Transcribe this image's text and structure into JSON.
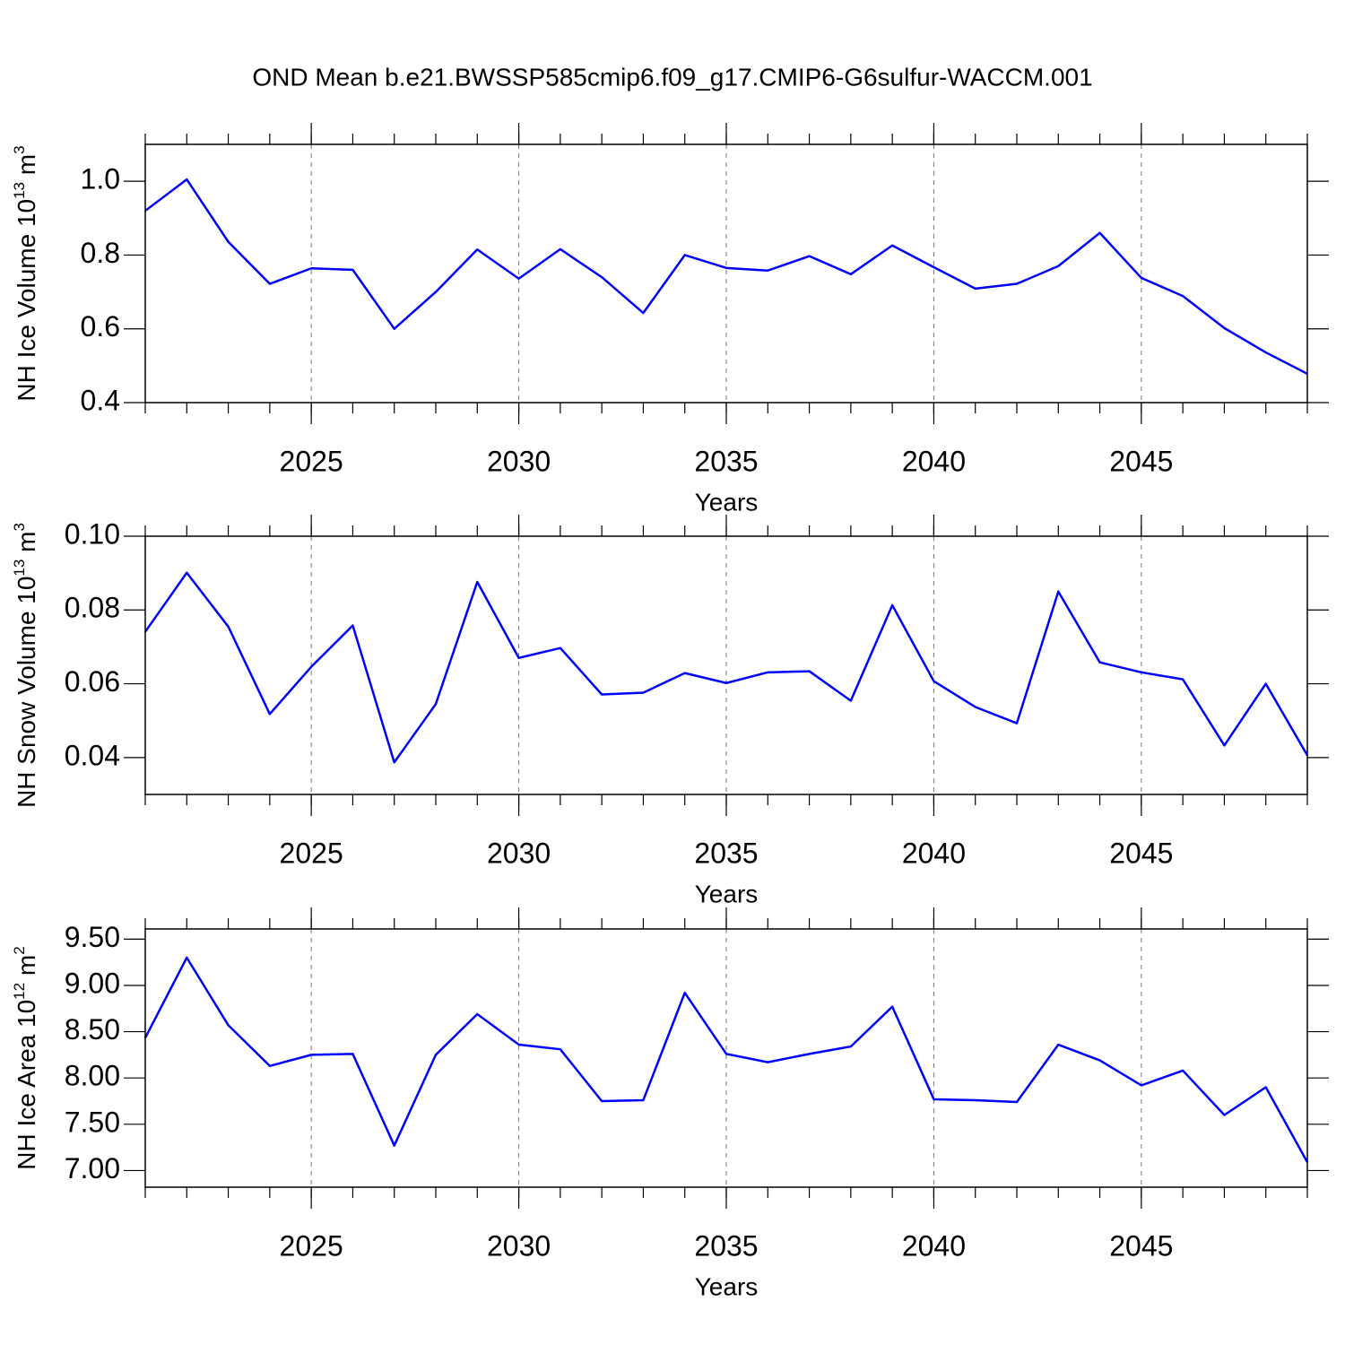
{
  "title": "OND Mean b.e21.BWSSP585cmip6.f09_g17.CMIP6-G6sulfur-WACCM.001",
  "chart_data": [
    {
      "type": "line",
      "ylabel_parts": [
        "NH Ice Volume 10",
        "13",
        " m",
        "3"
      ],
      "xlabel": "Years",
      "x": [
        2021,
        2022,
        2023,
        2024,
        2025,
        2026,
        2027,
        2028,
        2029,
        2030,
        2031,
        2032,
        2033,
        2034,
        2035,
        2036,
        2037,
        2038,
        2039,
        2040,
        2041,
        2042,
        2043,
        2044,
        2045,
        2046,
        2047,
        2048,
        2049
      ],
      "xlim": [
        2021,
        2049
      ],
      "xticks": [
        2025,
        2030,
        2035,
        2040,
        2045
      ],
      "grid_x": true,
      "ylim": [
        0.4,
        1.1
      ],
      "yticks": [
        {
          "value": 1,
          "label": "1.0"
        },
        0.8,
        0.6,
        0.4
      ],
      "series": [
        {
          "color": "#0000ff",
          "values": [
            0.92,
            1.005,
            0.836,
            0.722,
            0.764,
            0.76,
            0.6,
            0.7,
            0.815,
            0.736,
            0.816,
            0.74,
            0.643,
            0.8,
            0.765,
            0.758,
            0.797,
            0.748,
            0.826,
            0.767,
            0.709,
            0.722,
            0.77,
            0.86,
            0.738,
            0.689,
            0.602,
            0.536,
            0.478
          ]
        }
      ]
    },
    {
      "type": "line",
      "ylabel_parts": [
        "NH Snow Volume 10",
        "13",
        " m",
        "3"
      ],
      "xlabel": "Years",
      "x": [
        2021,
        2022,
        2023,
        2024,
        2025,
        2026,
        2027,
        2028,
        2029,
        2030,
        2031,
        2032,
        2033,
        2034,
        2035,
        2036,
        2037,
        2038,
        2039,
        2040,
        2041,
        2042,
        2043,
        2044,
        2045,
        2046,
        2047,
        2048,
        2049
      ],
      "xlim": [
        2021,
        2049
      ],
      "xticks": [
        2025,
        2030,
        2035,
        2040,
        2045
      ],
      "grid_x": true,
      "ylim": [
        0.03,
        0.1
      ],
      "yticks": [
        {
          "value": 0.1,
          "label": "0.10"
        },
        0.08,
        0.06,
        0.04
      ],
      "series": [
        {
          "color": "#0000ff",
          "values": [
            0.0741,
            0.0901,
            0.0755,
            0.0518,
            0.0646,
            0.0758,
            0.0387,
            0.0545,
            0.0876,
            0.067,
            0.0697,
            0.0571,
            0.0576,
            0.0629,
            0.0602,
            0.0631,
            0.0634,
            0.0554,
            0.0813,
            0.0607,
            0.0537,
            0.0493,
            0.085,
            0.0658,
            0.0631,
            0.0612,
            0.0433,
            0.06,
            0.0406
          ]
        }
      ]
    },
    {
      "type": "line",
      "ylabel_parts": [
        "NH Ice Area 10",
        "12",
        " m",
        "2"
      ],
      "xlabel": "Years",
      "x": [
        2021,
        2022,
        2023,
        2024,
        2025,
        2026,
        2027,
        2028,
        2029,
        2030,
        2031,
        2032,
        2033,
        2034,
        2035,
        2036,
        2037,
        2038,
        2039,
        2040,
        2041,
        2042,
        2043,
        2044,
        2045,
        2046,
        2047,
        2048,
        2049
      ],
      "xlim": [
        2021,
        2049
      ],
      "xticks": [
        2025,
        2030,
        2035,
        2040,
        2045
      ],
      "grid_x": true,
      "ylim": [
        6.82,
        9.61
      ],
      "yticks": [
        {
          "value": 9.5,
          "label": "9.50"
        },
        {
          "value": 9,
          "label": "9.00"
        },
        {
          "value": 8.5,
          "label": "8.50"
        },
        {
          "value": 8,
          "label": "8.00"
        },
        {
          "value": 7.5,
          "label": "7.50"
        },
        {
          "value": 7,
          "label": "7.00"
        }
      ],
      "series": [
        {
          "color": "#0000ff",
          "values": [
            8.434,
            9.3,
            8.57,
            8.13,
            8.25,
            8.26,
            7.27,
            8.25,
            8.69,
            8.36,
            8.31,
            7.75,
            7.76,
            8.92,
            8.26,
            8.17,
            8.26,
            8.34,
            8.77,
            7.77,
            7.76,
            7.74,
            8.36,
            8.19,
            7.92,
            8.08,
            7.6,
            7.9,
            7.09
          ]
        }
      ]
    }
  ]
}
